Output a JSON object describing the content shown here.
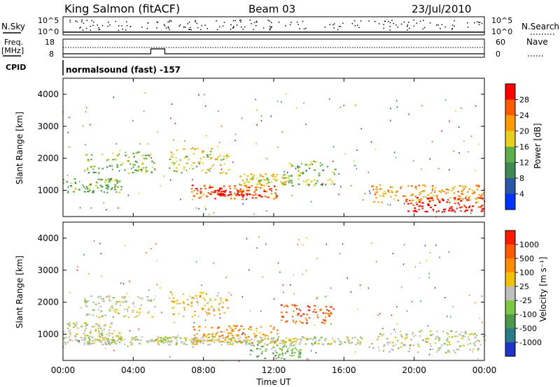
{
  "header": {
    "station": "King Salmon (fitACF)",
    "beam": "Beam 03",
    "date": "23/Jul/2010"
  },
  "top_panels": {
    "nsky_label": "N.Sky",
    "nsearch_label": "N.Search",
    "nsky_ticks": [
      "10^5",
      "10^0"
    ],
    "nsearch_ticks": [
      "10^5",
      "10^0"
    ],
    "freq_label_1": "Freq.",
    "freq_label_2": "[MHz]",
    "freq_ticks": [
      "18",
      "8"
    ],
    "nave_label": "Nave",
    "nave_ticks": [
      "60",
      "0"
    ],
    "cpid_label": "CPID",
    "cpid_value": "normalsound (fast) -157"
  },
  "chart_data": [
    {
      "type": "heatmap",
      "name": "power",
      "ylabel": "Slant Range [km]",
      "yticks": [
        "1000",
        "2000",
        "3000",
        "4000"
      ],
      "ylim": [
        180,
        4500
      ],
      "xlim": [
        "00:00",
        "24:00"
      ],
      "colorbar_label": "Power [dB]",
      "colorbar_ticks": [
        "4",
        "8",
        "12",
        "16",
        "20",
        "24",
        "28"
      ],
      "colorbar_colors": [
        "#0033ff",
        "#2a57a8",
        "#3f8a52",
        "#5ab049",
        "#e7d11a",
        "#ff9a00",
        "#ff5a00",
        "#ff0000"
      ],
      "regions": [
        {
          "t0": 0.0,
          "t1": 3.3,
          "r0": 900,
          "r1": 1350,
          "level": 3
        },
        {
          "t0": 1.2,
          "t1": 5.2,
          "r0": 1500,
          "r1": 2200,
          "level": 3
        },
        {
          "t0": 6.0,
          "t1": 9.5,
          "r0": 1500,
          "r1": 2300,
          "level": 4
        },
        {
          "t0": 7.3,
          "t1": 12.2,
          "r0": 700,
          "r1": 1150,
          "level": 6
        },
        {
          "t0": 8.5,
          "t1": 10.5,
          "r0": 800,
          "r1": 1000,
          "level": 7
        },
        {
          "t0": 10.0,
          "t1": 13.0,
          "r0": 1100,
          "r1": 1500,
          "level": 4
        },
        {
          "t0": 12.5,
          "t1": 15.5,
          "r0": 1100,
          "r1": 1900,
          "level": 3
        },
        {
          "t0": 17.5,
          "t1": 24.0,
          "r0": 600,
          "r1": 1150,
          "level": 5
        },
        {
          "t0": 19.5,
          "t1": 24.0,
          "r0": 300,
          "r1": 750,
          "level": 7
        }
      ]
    },
    {
      "type": "heatmap",
      "name": "velocity",
      "ylabel": "Slant Range [km]",
      "yticks": [
        "1000",
        "2000",
        "3000",
        "4000"
      ],
      "ylim": [
        180,
        4500
      ],
      "xlim": [
        "00:00",
        "24:00"
      ],
      "xticks": [
        "00:00",
        "04:00",
        "08:00",
        "12:00",
        "16:00",
        "20:00",
        "00:00"
      ],
      "xlabel": "Time UT",
      "colorbar_label": "Velocity [m s⁻¹]",
      "colorbar_ticks": [
        "1000",
        "500",
        "100",
        "25",
        "-25",
        "-100",
        "-500",
        "-1000"
      ],
      "colorbar_colors": [
        "#2233cc",
        "#2a7a8a",
        "#4a9a4a",
        "#7ac843",
        "#bfbfbf",
        "#f2c200",
        "#ff8c00",
        "#ff5a00",
        "#ff1a00"
      ],
      "regions": [
        {
          "t0": 0.0,
          "t1": 3.3,
          "r0": 900,
          "r1": 1350,
          "level": 4
        },
        {
          "t0": 1.2,
          "t1": 5.2,
          "r0": 1500,
          "r1": 2200,
          "level": 4
        },
        {
          "t0": 6.0,
          "t1": 9.5,
          "r0": 1500,
          "r1": 2300,
          "level": 5
        },
        {
          "t0": 7.3,
          "t1": 12.2,
          "r0": 700,
          "r1": 1250,
          "level": 6
        },
        {
          "t0": 12.3,
          "t1": 15.4,
          "r0": 1300,
          "r1": 1900,
          "level": 7
        },
        {
          "t0": 10.5,
          "t1": 13.5,
          "r0": 200,
          "r1": 650,
          "level": 3
        },
        {
          "t0": 17.5,
          "t1": 24.0,
          "r0": 400,
          "r1": 1100,
          "level": 4
        },
        {
          "t0": 0.0,
          "t1": 17.0,
          "r0": 650,
          "r1": 900,
          "level": 4
        }
      ]
    }
  ]
}
